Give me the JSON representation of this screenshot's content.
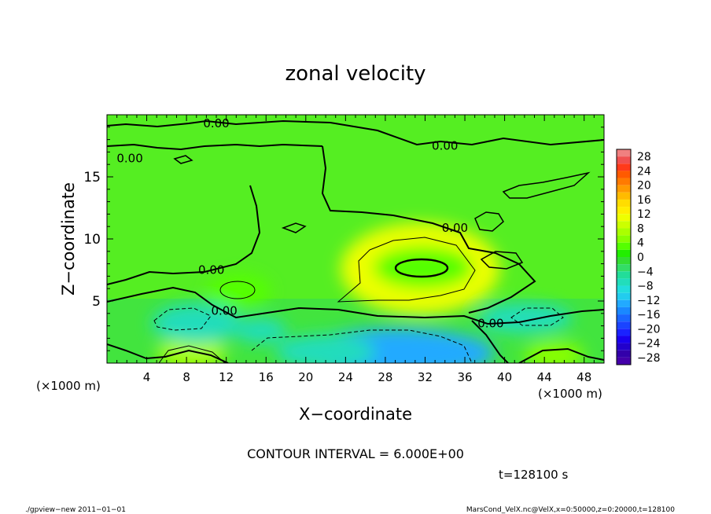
{
  "chart_data": {
    "type": "heatmap",
    "title": "zonal velocity",
    "xlabel": "X−coordinate",
    "ylabel": "Z−coordinate",
    "x_unit_left": "(×1000 m)",
    "x_unit_right": "(×1000 m)",
    "xlim": [
      0,
      50
    ],
    "ylim": [
      0,
      20
    ],
    "x_ticks": [
      "4",
      "8",
      "12",
      "16",
      "20",
      "24",
      "28",
      "32",
      "36",
      "40",
      "44",
      "48"
    ],
    "x_tick_values": [
      4,
      8,
      12,
      16,
      20,
      24,
      28,
      32,
      36,
      40,
      44,
      48
    ],
    "y_ticks": [
      "5",
      "10",
      "15"
    ],
    "y_tick_values": [
      5,
      10,
      15
    ],
    "contour_interval_label": "CONTOUR INTERVAL = 6.000E+00",
    "time_label": "t=128100 s",
    "contour_labels": [
      {
        "text": "0.00",
        "x": 11.0,
        "z": 19.3
      },
      {
        "text": "0.00",
        "x": 34.0,
        "z": 17.5
      },
      {
        "text": "0.00",
        "x": 2.3,
        "z": 16.5
      },
      {
        "text": "0.00",
        "x": 35.0,
        "z": 10.9
      },
      {
        "text": "0.00",
        "x": 10.5,
        "z": 7.5
      },
      {
        "text": "0.00",
        "x": 11.8,
        "z": 4.2
      },
      {
        "text": "0.00",
        "x": 38.6,
        "z": 3.2
      }
    ],
    "features": [
      {
        "kind": "max",
        "x": 31.5,
        "z": 7.6,
        "value": 11,
        "rx": 8.0,
        "rz": 3.7
      },
      {
        "kind": "max",
        "x": 31.8,
        "z": 7.7,
        "value": 4,
        "rx": 5.0,
        "rz": 1.7
      },
      {
        "kind": "max",
        "x": 13.3,
        "z": 5.8,
        "value": 3,
        "rx": 3.2,
        "rz": 1.4
      },
      {
        "kind": "max",
        "x": 8.5,
        "z": 0.8,
        "value": 8,
        "rx": 3.5,
        "rz": 1.2
      },
      {
        "kind": "max",
        "x": 45.0,
        "z": 0.6,
        "value": 6,
        "rx": 3.0,
        "rz": 1.2
      },
      {
        "kind": "min",
        "x": 9.0,
        "z": 3.2,
        "value": -7,
        "rx": 4.5,
        "rz": 1.6
      },
      {
        "kind": "min",
        "x": 42.0,
        "z": 3.6,
        "value": -6,
        "rx": 4.8,
        "rz": 1.2
      },
      {
        "kind": "min",
        "x": 15.5,
        "z": 2.6,
        "value": -6,
        "rx": 2.6,
        "rz": 1.0
      },
      {
        "kind": "min",
        "x": 29.0,
        "z": 0.8,
        "value": -12,
        "rx": 10.0,
        "rz": 2.0
      },
      {
        "kind": "min",
        "x": 22.0,
        "z": 0.9,
        "value": -7,
        "rx": 5.0,
        "rz": 1.4
      }
    ],
    "colorbar": {
      "labels": [
        "28",
        "24",
        "20",
        "16",
        "12",
        "8",
        "4",
        "0",
        "−4",
        "−8",
        "−12",
        "−16",
        "−20",
        "−24",
        "−28"
      ],
      "levels": [
        30,
        28,
        26,
        24,
        22,
        20,
        18,
        16,
        14,
        12,
        10,
        8,
        6,
        4,
        2,
        0,
        -2,
        -4,
        -6,
        -8,
        -10,
        -12,
        -14,
        -16,
        -18,
        -20,
        -22,
        -24,
        -26,
        -28,
        -30
      ],
      "colors": [
        "#f08080",
        "#f05050",
        "#ff3a1a",
        "#ff5a00",
        "#ff7a00",
        "#ff9a00",
        "#ffbb00",
        "#ffdd00",
        "#ffee00",
        "#eeff00",
        "#ccff00",
        "#aaff00",
        "#88ff00",
        "#55ff00",
        "#22ee00",
        "#33dd33",
        "#33dd66",
        "#22dd99",
        "#22ddbb",
        "#22dddd",
        "#22ccee",
        "#22aaff",
        "#1a88ff",
        "#1a66ff",
        "#1a44ff",
        "#1a22ff",
        "#1a00ee",
        "#2200cc",
        "#3300aa",
        "#4400aa"
      ]
    }
  },
  "footer": {
    "left": "./gpview−new  2011−01−01",
    "right": "MarsCond_VelX.nc@VelX,x=0:50000,z=0:20000,t=128100"
  }
}
